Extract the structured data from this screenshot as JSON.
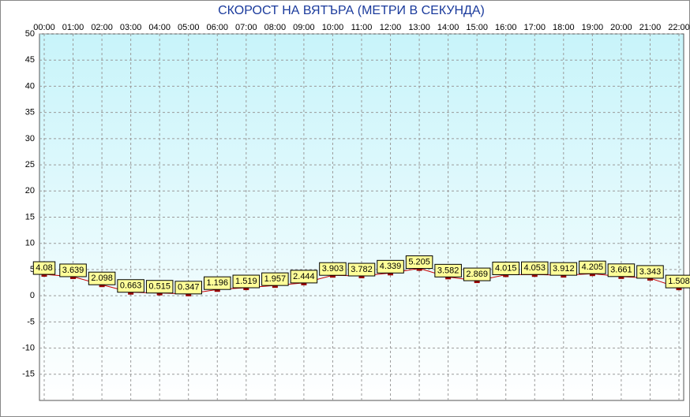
{
  "chart_data": {
    "type": "line",
    "title": "СКОРОСТ НА ВЯТЪРА (МЕТРИ В СЕКУНДА)",
    "categories": [
      "00:00",
      "01:00",
      "02:00",
      "03:00",
      "04:00",
      "05:00",
      "06:00",
      "07:00",
      "08:00",
      "09:00",
      "10:00",
      "11:00",
      "12:00",
      "13:00",
      "14:00",
      "15:00",
      "16:00",
      "17:00",
      "18:00",
      "19:00",
      "20:00",
      "21:00",
      "22:00"
    ],
    "values": [
      4.08,
      3.639,
      2.098,
      0.663,
      0.515,
      0.347,
      1.196,
      1.519,
      1.957,
      2.444,
      3.903,
      3.782,
      4.339,
      5.205,
      3.582,
      2.869,
      4.015,
      4.053,
      3.912,
      4.205,
      3.661,
      3.343,
      1.508
    ],
    "color": "#cc0000",
    "marker_color": "#990000",
    "label_color": "#ffff99",
    "ylim": [
      -20,
      50
    ],
    "yticks": [
      50,
      45,
      40,
      35,
      30,
      25,
      20,
      15,
      10,
      5,
      0,
      -5,
      -10,
      -15
    ],
    "grid": true
  }
}
